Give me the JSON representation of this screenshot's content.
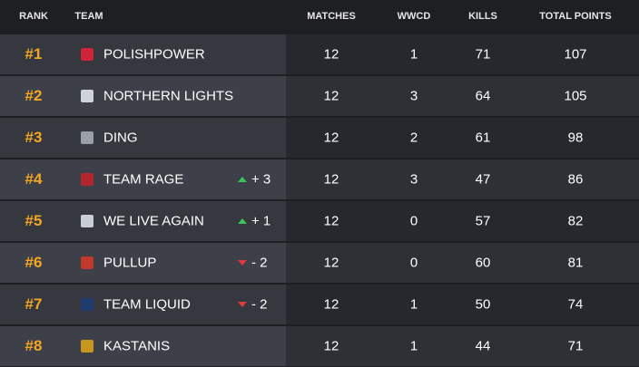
{
  "header": {
    "rank": "RANK",
    "team": "TEAM",
    "matches": "MATCHES",
    "wwcd": "WWCD",
    "kills": "KILLS",
    "total_points": "TOTAL POINTS"
  },
  "rows": [
    {
      "rank": "#1",
      "team": "POLISHPOWER",
      "matches": 12,
      "wwcd": 1,
      "kills": 71,
      "total_points": 107
    },
    {
      "rank": "#2",
      "team": "NORTHERN LIGHTS",
      "matches": 12,
      "wwcd": 3,
      "kills": 64,
      "total_points": 105
    },
    {
      "rank": "#3",
      "team": "DING",
      "matches": 12,
      "wwcd": 2,
      "kills": 61,
      "total_points": 98
    },
    {
      "rank": "#4",
      "team": "TEAM RAGE",
      "change": "+ 3",
      "matches": 12,
      "wwcd": 3,
      "kills": 47,
      "total_points": 86
    },
    {
      "rank": "#5",
      "team": "WE LIVE AGAIN",
      "change": "+ 1",
      "matches": 12,
      "wwcd": 0,
      "kills": 57,
      "total_points": 82
    },
    {
      "rank": "#6",
      "team": "PULLUP",
      "change": "- 2",
      "matches": 12,
      "wwcd": 0,
      "kills": 60,
      "total_points": 81
    },
    {
      "rank": "#7",
      "team": "TEAM LIQUID",
      "change": "- 2",
      "matches": 12,
      "wwcd": 1,
      "kills": 50,
      "total_points": 74
    },
    {
      "rank": "#8",
      "team": "KASTANIS",
      "matches": 12,
      "wwcd": 1,
      "kills": 44,
      "total_points": 71
    }
  ]
}
